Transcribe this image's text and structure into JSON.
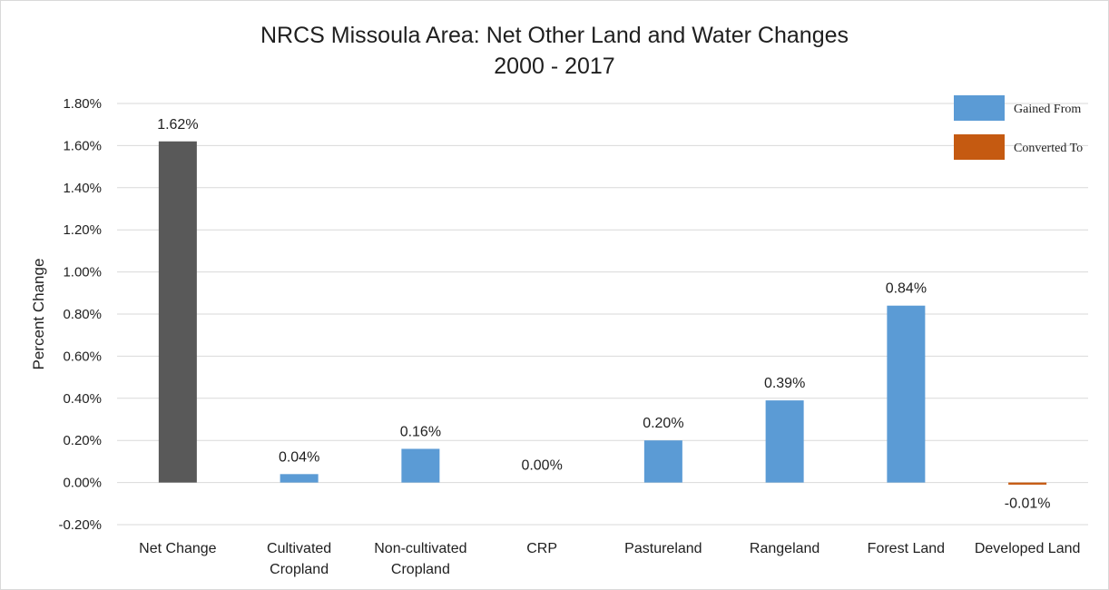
{
  "chart_data": {
    "type": "bar",
    "title": "NRCS Missoula Area: Net Other Land and Water Changes",
    "subtitle": "2000 - 2017",
    "ylabel": "Percent Change",
    "xlabel": "",
    "ylim": [
      -0.2,
      1.8
    ],
    "yticks": [
      -0.2,
      0.0,
      0.2,
      0.4,
      0.6,
      0.8,
      1.0,
      1.2,
      1.4,
      1.6,
      1.8
    ],
    "ytick_labels": [
      "-0.20%",
      "0.00%",
      "0.20%",
      "0.40%",
      "0.60%",
      "0.80%",
      "1.00%",
      "1.20%",
      "1.40%",
      "1.60%",
      "1.80%"
    ],
    "grid": true,
    "legend_position": "top-right",
    "categories": [
      [
        "Net Change"
      ],
      [
        "Cultivated",
        "Cropland"
      ],
      [
        "Non-cultivated",
        "Cropland"
      ],
      [
        "CRP"
      ],
      [
        "Pastureland"
      ],
      [
        "Rangeland"
      ],
      [
        "Forest Land"
      ],
      [
        "Developed Land"
      ]
    ],
    "values": [
      1.62,
      0.04,
      0.16,
      0.0,
      0.2,
      0.39,
      0.84,
      -0.01
    ],
    "data_labels": [
      "1.62%",
      "0.04%",
      "0.16%",
      "0.00%",
      "0.20%",
      "0.39%",
      "0.84%",
      "-0.01%"
    ],
    "bar_types": [
      "net",
      "gained",
      "gained",
      "gained",
      "gained",
      "gained",
      "gained",
      "converted"
    ],
    "legend": [
      {
        "key": "gained",
        "label": "Gained From",
        "color": "#5b9bd5"
      },
      {
        "key": "converted",
        "label": "Converted To",
        "color": "#c55a11"
      }
    ],
    "colors": {
      "net": "#595959",
      "gained": "#5b9bd5",
      "converted": "#c55a11",
      "grid": "#d9d9d9"
    }
  }
}
